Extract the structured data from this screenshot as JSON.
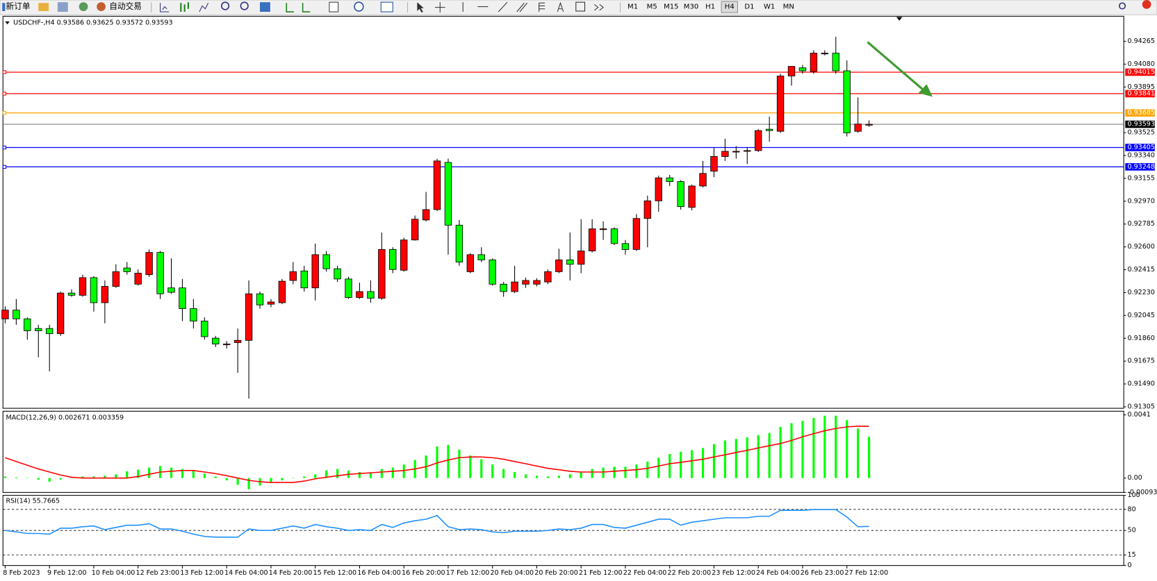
{
  "toolbar": {
    "buttons": [
      "新订单",
      "自动交易"
    ],
    "timeframes": [
      "M1",
      "M5",
      "M15",
      "M30",
      "H1",
      "H4",
      "D1",
      "W1",
      "MN"
    ],
    "active": "H4"
  },
  "chart_data": [
    {
      "type": "candlestick",
      "title": "USDCHF-,H4 0.93586 0.93625 0.93572 0.93593",
      "up_color": "#ff0000",
      "down_color": "#00ff00",
      "wick_color": "#000000",
      "categories": [
        "8 Feb 2023",
        null,
        null,
        null,
        "9 Feb 12:00",
        null,
        null,
        null,
        "10 Feb 04:00",
        null,
        null,
        null,
        "12 Feb 23:00",
        null,
        null,
        null,
        "13 Feb 12:00",
        null,
        null,
        null,
        "14 Feb 04:00",
        null,
        null,
        null,
        "14 Feb 20:00",
        null,
        null,
        null,
        "15 Feb 12:00",
        null,
        null,
        null,
        "16 Feb 04:00",
        null,
        null,
        null,
        "16 Feb 20:00",
        null,
        null,
        null,
        "17 Feb 12:00",
        null,
        null,
        null,
        "20 Feb 04:00",
        null,
        null,
        null,
        "20 Feb 20:00",
        null,
        null,
        null,
        "21 Feb 12:00",
        null,
        null,
        null,
        "22 Feb 04:00",
        null,
        null,
        null,
        "22 Feb 20:00",
        null,
        null,
        null,
        "23 Feb 12:00",
        null,
        null,
        null,
        "24 Feb 04:00",
        null,
        null,
        null,
        "26 Feb 23:00",
        null,
        null,
        null,
        "27 Feb 12:00",
        null,
        null
      ],
      "open": [
        0.92017,
        0.92088,
        0.92017,
        0.91939,
        0.91939,
        0.91897,
        0.92226,
        0.92208,
        0.92351,
        0.92148,
        0.9228,
        0.92429,
        0.92298,
        0.92375,
        0.92555,
        0.92268,
        0.92268,
        0.921,
        0.91999,
        0.91861,
        0.91813,
        0.91825,
        0.91843,
        0.9222,
        0.92136,
        0.92148,
        0.92328,
        0.92405,
        0.92268,
        0.92537,
        0.92423,
        0.9234,
        0.9219,
        0.92238,
        0.92184,
        0.92579,
        0.92411,
        0.92656,
        0.92818,
        0.92902,
        0.93284,
        0.92776,
        0.92399,
        0.92537,
        0.92495,
        0.92298,
        0.92238,
        0.92298,
        0.92298,
        0.92316,
        0.92399,
        0.92495,
        0.92459,
        0.92567,
        0.9274,
        0.92746,
        0.92627,
        0.92579,
        0.9283,
        0.92973,
        0.93159,
        0.93129,
        0.9292,
        0.93093,
        0.93213,
        0.93332,
        0.93374,
        0.93374,
        0.9338,
        0.93553,
        0.93536,
        0.93984,
        0.9405,
        0.9402,
        0.94163,
        0.94169,
        0.94026,
        0.93536,
        0.93586
      ],
      "high": [
        0.92118,
        0.92178,
        0.92029,
        0.91969,
        0.91969,
        0.92238,
        0.92256,
        0.92375,
        0.92363,
        0.92328,
        0.92459,
        0.92477,
        0.92417,
        0.92579,
        0.92567,
        0.92507,
        0.9234,
        0.92178,
        0.92029,
        0.91879,
        0.91837,
        0.91939,
        0.92328,
        0.92238,
        0.92178,
        0.9234,
        0.92477,
        0.92447,
        0.92627,
        0.92567,
        0.92447,
        0.92357,
        0.9231,
        0.92328,
        0.92716,
        0.92597,
        0.92674,
        0.92854,
        0.93045,
        0.93314,
        0.93314,
        0.92818,
        0.92549,
        0.92597,
        0.92507,
        0.92316,
        0.92447,
        0.92351,
        0.92346,
        0.92417,
        0.92585,
        0.92716,
        0.92824,
        0.92824,
        0.92806,
        0.92758,
        0.92656,
        0.92866,
        0.93015,
        0.93177,
        0.93183,
        0.93141,
        0.93105,
        0.93296,
        0.93404,
        0.93476,
        0.93416,
        0.93404,
        0.93553,
        0.93655,
        0.94002,
        0.94062,
        0.94074,
        0.94193,
        0.94193,
        0.94301,
        0.9411,
        0.93811,
        0.93625
      ],
      "low": [
        0.91981,
        0.91969,
        0.91849,
        0.91706,
        0.91592,
        0.91879,
        0.92196,
        0.92196,
        0.92076,
        0.91981,
        0.92268,
        0.92375,
        0.92286,
        0.92357,
        0.92178,
        0.9222,
        0.91999,
        0.91939,
        0.91849,
        0.91789,
        0.91777,
        0.9158,
        0.91371,
        0.921,
        0.92112,
        0.92136,
        0.92298,
        0.92238,
        0.92166,
        0.92399,
        0.92316,
        0.92178,
        0.92178,
        0.92148,
        0.92172,
        0.92387,
        0.92399,
        0.92651,
        0.92806,
        0.9289,
        0.92537,
        0.92447,
        0.92387,
        0.92477,
        0.92286,
        0.92196,
        0.92226,
        0.92268,
        0.9228,
        0.92298,
        0.92387,
        0.92328,
        0.92387,
        0.92555,
        0.92656,
        0.92615,
        0.92537,
        0.92567,
        0.92597,
        0.92884,
        0.93093,
        0.92902,
        0.92896,
        0.93081,
        0.93165,
        0.93296,
        0.93314,
        0.93272,
        0.93368,
        0.93452,
        0.93524,
        0.93906,
        0.94002,
        0.94002,
        0.94151,
        0.94002,
        0.93494,
        0.93524,
        0.93572
      ],
      "close": [
        0.92088,
        0.92017,
        0.91921,
        0.91921,
        0.91897,
        0.92226,
        0.92208,
        0.92351,
        0.92148,
        0.9228,
        0.92399,
        0.92399,
        0.92387,
        0.92555,
        0.9222,
        0.92232,
        0.921,
        0.91999,
        0.91873,
        0.91813,
        0.91813,
        0.91843,
        0.9222,
        0.9213,
        0.92154,
        0.92322,
        0.92399,
        0.92268,
        0.92537,
        0.92423,
        0.9234,
        0.9219,
        0.92238,
        0.92184,
        0.92579,
        0.92417,
        0.92656,
        0.92824,
        0.92902,
        0.93296,
        0.92776,
        0.92477,
        0.92537,
        0.92495,
        0.92298,
        0.92238,
        0.92316,
        0.92328,
        0.92328,
        0.92399,
        0.92495,
        0.92459,
        0.92567,
        0.92746,
        0.92746,
        0.92627,
        0.92579,
        0.9283,
        0.92973,
        0.93159,
        0.93129,
        0.92926,
        0.93093,
        0.93195,
        0.93332,
        0.93374,
        0.93374,
        0.9338,
        0.93542,
        0.93542,
        0.93984,
        0.94062,
        0.94026,
        0.94169,
        0.94169,
        0.94026,
        0.93524,
        0.93595,
        0.93593
      ],
      "ylim": [
        0.91293,
        0.94468
      ],
      "yticks": [
        0.94265,
        {
          "value": 0.9408,
          "label": "0.94080"
        },
        0.93895,
        0.93525,
        {
          "value": 0.9334,
          "label": "0.93340"
        },
        0.93155,
        {
          "value": 0.9297,
          "label": "0.92970"
        },
        0.92785,
        {
          "value": 0.926,
          "label": "0.92600"
        },
        0.92415,
        {
          "value": 0.9223,
          "label": "0.92230"
        },
        0.92045,
        {
          "value": 0.9186,
          "label": "0.91860"
        },
        0.91675,
        {
          "value": 0.9149,
          "label": "0.91490"
        },
        0.91305
      ],
      "levels": [
        {
          "value": 0.94015,
          "color": "#ff0000"
        },
        {
          "value": 0.93841,
          "color": "#ff0000"
        },
        {
          "value": 0.93685,
          "color": "#ffa500"
        },
        {
          "value": 0.93405,
          "color": "#0000ff"
        },
        {
          "value": 0.93248,
          "color": "#0000ff"
        }
      ],
      "price_line_color": "#808080"
    },
    {
      "type": "macd",
      "title": "MACD(12,26,9) 0.002671 0.003359",
      "histogram": {
        "color": "#00ff00",
        "values": [
          0.0001,
          5e-05,
          0,
          -0.0001,
          -0.00024,
          -0.0001,
          5e-05,
          0.0001,
          0.0001,
          0.00015,
          0.00024,
          0.00044,
          0.00054,
          0.00068,
          0.00078,
          0.00068,
          0.00059,
          0.00049,
          0.00029,
          0.0001,
          -0.00015,
          -0.00044,
          -0.00073,
          -0.00049,
          -0.00029,
          -0.00015,
          0,
          0.0001,
          0.00024,
          0.00049,
          0.00059,
          0.00049,
          0.00039,
          0.00034,
          0.00059,
          0.00068,
          0.00088,
          0.00117,
          0.00146,
          0.00205,
          0.00215,
          0.00185,
          0.00146,
          0.00122,
          0.00088,
          0.00059,
          0.00039,
          0.00024,
          0.00015,
          0.0001,
          0.00015,
          0.00024,
          0.00039,
          0.00059,
          0.00068,
          0.00073,
          0.00073,
          0.00088,
          0.00107,
          0.00132,
          0.00156,
          0.00171,
          0.00181,
          0.00195,
          0.0022,
          0.00244,
          0.00254,
          0.00264,
          0.00278,
          0.00293,
          0.00332,
          0.00356,
          0.00371,
          0.0039,
          0.00405,
          0.00405,
          0.00376,
          0.00322,
          0.002671
        ]
      },
      "signal": {
        "color": "#ff0000",
        "values": [
          0.00132,
          0.00107,
          0.00083,
          0.00059,
          0.00039,
          0.0002,
          5e-05,
          0,
          0,
          0,
          0,
          0,
          0.0001,
          0.00024,
          0.00039,
          0.00044,
          0.00049,
          0.00049,
          0.00039,
          0.00029,
          0.00015,
          0,
          -0.00015,
          -0.00024,
          -0.00029,
          -0.00029,
          -0.00029,
          -0.0002,
          -5e-05,
          5e-05,
          0.00015,
          0.00024,
          0.00029,
          0.00034,
          0.00039,
          0.00044,
          0.00049,
          0.00059,
          0.00073,
          0.00098,
          0.00117,
          0.00132,
          0.00137,
          0.00137,
          0.00132,
          0.00122,
          0.00107,
          0.00093,
          0.00078,
          0.00063,
          0.00054,
          0.00044,
          0.00039,
          0.00039,
          0.00039,
          0.00044,
          0.00049,
          0.00054,
          0.00063,
          0.00078,
          0.00093,
          0.00102,
          0.00112,
          0.00122,
          0.00137,
          0.00151,
          0.00166,
          0.0018,
          0.00195,
          0.0021,
          0.00224,
          0.00244,
          0.00268,
          0.00288,
          0.00307,
          0.00322,
          0.00332,
          0.00337,
          0.003359
        ]
      },
      "ylim": [
        -0.000934,
        0.00434
      ],
      "yticks": [
        0.0041,
        {
          "value": 0,
          "label": "0.00"
        },
        -0.000934
      ]
    },
    {
      "type": "line",
      "title": "RSI(14) 55.7665",
      "color": "#1e90ff",
      "values": [
        50,
        47.9,
        45.7,
        45.7,
        44.7,
        53.2,
        53.2,
        55.3,
        56.4,
        51.1,
        54.3,
        57.4,
        57.4,
        59.6,
        52.1,
        52.1,
        48.9,
        44.7,
        41.5,
        40.4,
        40.4,
        40.4,
        52.1,
        50,
        50,
        53.2,
        56.4,
        53.2,
        58.5,
        55.3,
        53.2,
        50,
        51.1,
        50,
        58.5,
        54.3,
        60.6,
        63.8,
        66,
        71.3,
        55.3,
        51.1,
        52.1,
        51.1,
        47.9,
        46.8,
        48.9,
        48.9,
        48.9,
        50,
        52.1,
        51.1,
        53.2,
        58.5,
        58.5,
        54.3,
        53.2,
        57.4,
        61.7,
        66,
        66,
        57.4,
        61.7,
        63.8,
        66,
        68.1,
        68.1,
        68.1,
        70.2,
        70.2,
        78.7,
        78.7,
        78.7,
        79.8,
        79.8,
        79.8,
        69.1,
        55.3,
        55.7665
      ],
      "ylim": [
        0,
        100
      ],
      "yticks": [
        100,
        80,
        50,
        15,
        0
      ]
    }
  ]
}
